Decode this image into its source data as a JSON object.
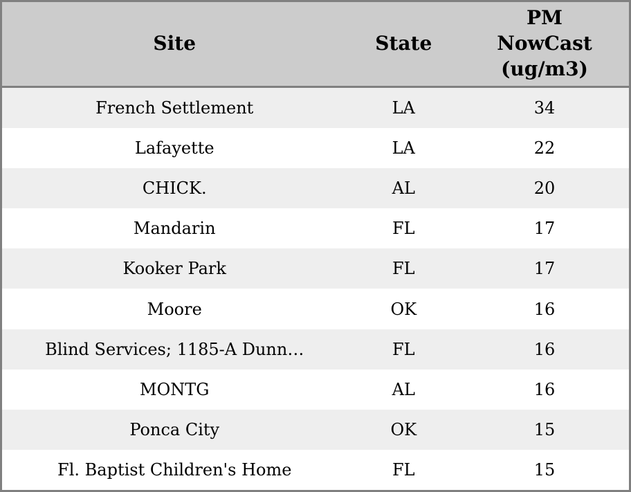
{
  "table": {
    "header": {
      "site": "Site",
      "state": "State",
      "pm_lines": [
        "PM",
        "NowCast",
        "(ug/m3)"
      ]
    }
  },
  "chart_data": {
    "type": "table",
    "title": "",
    "columns": [
      "Site",
      "State",
      "PM NowCast (ug/m3)"
    ],
    "rows": [
      [
        "French Settlement",
        "LA",
        34
      ],
      [
        "Lafayette",
        "LA",
        22
      ],
      [
        "CHICK.",
        "AL",
        20
      ],
      [
        "Mandarin",
        "FL",
        17
      ],
      [
        "Kooker Park",
        "FL",
        17
      ],
      [
        "Moore",
        "OK",
        16
      ],
      [
        "Blind Services; 1185-A Dunn…",
        "FL",
        16
      ],
      [
        "MONTG",
        "AL",
        16
      ],
      [
        "Ponca City",
        "OK",
        15
      ],
      [
        "Fl. Baptist Children's Home",
        "FL",
        15
      ]
    ],
    "layout_hints": {
      "striped_rows": true,
      "alignment": "center",
      "header_multiline_column": "PM NowCast (ug/m3)"
    }
  },
  "colors": {
    "header_bg": "#cccccc",
    "row_alt_bg": "#eeeeee",
    "row_bg": "#ffffff",
    "border": "#808080",
    "text": "#000000"
  }
}
